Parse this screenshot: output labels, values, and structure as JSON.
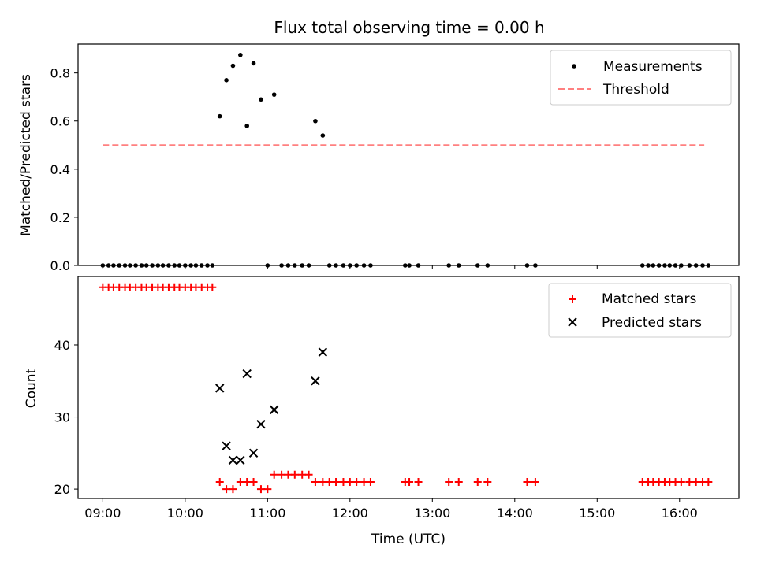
{
  "chart_data": {
    "title": "Flux total observing time = 0.00 h",
    "xlabel": "Time (UTC)",
    "x_tick_labels": [
      "09:00",
      "10:00",
      "11:00",
      "12:00",
      "13:00",
      "14:00",
      "15:00",
      "16:00"
    ],
    "x_tick_hours": [
      9,
      10,
      11,
      12,
      13,
      14,
      15,
      16
    ],
    "xlim": [
      8.7,
      16.72
    ],
    "panels": [
      {
        "type": "scatter",
        "ylabel": "Matched/Predicted stars",
        "ylim": [
          0,
          0.92
        ],
        "y_ticks": [
          0.0,
          0.2,
          0.4,
          0.6,
          0.8
        ],
        "y_tick_labels": [
          "0.0",
          "0.2",
          "0.4",
          "0.6",
          "0.8"
        ],
        "legend": "top-right",
        "series": [
          {
            "name": "Measurements",
            "marker": "dot",
            "color": "#000000",
            "points": [
              [
                9.0,
                0
              ],
              [
                9.07,
                0
              ],
              [
                9.13,
                0
              ],
              [
                9.2,
                0
              ],
              [
                9.27,
                0
              ],
              [
                9.33,
                0
              ],
              [
                9.4,
                0
              ],
              [
                9.47,
                0
              ],
              [
                9.53,
                0
              ],
              [
                9.6,
                0
              ],
              [
                9.67,
                0
              ],
              [
                9.73,
                0
              ],
              [
                9.8,
                0
              ],
              [
                9.87,
                0
              ],
              [
                9.93,
                0
              ],
              [
                10.0,
                0
              ],
              [
                10.07,
                0
              ],
              [
                10.13,
                0
              ],
              [
                10.2,
                0
              ],
              [
                10.27,
                0
              ],
              [
                10.33,
                0
              ],
              [
                10.42,
                0.62
              ],
              [
                10.5,
                0.77
              ],
              [
                10.58,
                0.83
              ],
              [
                10.67,
                0.875
              ],
              [
                10.75,
                0.58
              ],
              [
                10.83,
                0.84
              ],
              [
                10.92,
                0.69
              ],
              [
                11.0,
                0
              ],
              [
                11.08,
                0.71
              ],
              [
                11.17,
                0
              ],
              [
                11.25,
                0
              ],
              [
                11.33,
                0
              ],
              [
                11.42,
                0
              ],
              [
                11.5,
                0
              ],
              [
                11.58,
                0.6
              ],
              [
                11.67,
                0.54
              ],
              [
                11.75,
                0
              ],
              [
                11.83,
                0
              ],
              [
                11.92,
                0
              ],
              [
                12.0,
                0
              ],
              [
                12.08,
                0
              ],
              [
                12.17,
                0
              ],
              [
                12.25,
                0
              ],
              [
                12.67,
                0
              ],
              [
                12.72,
                0
              ],
              [
                12.83,
                0
              ],
              [
                13.2,
                0
              ],
              [
                13.32,
                0
              ],
              [
                13.55,
                0
              ],
              [
                13.67,
                0
              ],
              [
                14.15,
                0
              ],
              [
                14.25,
                0
              ],
              [
                15.55,
                0
              ],
              [
                15.62,
                0
              ],
              [
                15.68,
                0
              ],
              [
                15.75,
                0
              ],
              [
                15.82,
                0
              ],
              [
                15.88,
                0
              ],
              [
                15.95,
                0
              ],
              [
                16.02,
                0
              ],
              [
                16.12,
                0
              ],
              [
                16.2,
                0
              ],
              [
                16.28,
                0
              ],
              [
                16.35,
                0
              ]
            ]
          },
          {
            "name": "Threshold",
            "marker": "dashed-line",
            "color": "#ff8080",
            "points": [
              [
                9.0,
                0.5
              ],
              [
                16.3,
                0.5
              ]
            ]
          }
        ]
      },
      {
        "type": "scatter",
        "ylabel": "Count",
        "ylim": [
          18.7,
          49.5
        ],
        "y_ticks": [
          20,
          30,
          40
        ],
        "y_tick_labels": [
          "20",
          "30",
          "40"
        ],
        "legend": "top-right",
        "series": [
          {
            "name": "Matched stars",
            "marker": "plus",
            "color": "#ff0000",
            "points": [
              [
                9.0,
                48
              ],
              [
                9.07,
                48
              ],
              [
                9.13,
                48
              ],
              [
                9.2,
                48
              ],
              [
                9.27,
                48
              ],
              [
                9.33,
                48
              ],
              [
                9.4,
                48
              ],
              [
                9.47,
                48
              ],
              [
                9.53,
                48
              ],
              [
                9.6,
                48
              ],
              [
                9.67,
                48
              ],
              [
                9.73,
                48
              ],
              [
                9.8,
                48
              ],
              [
                9.87,
                48
              ],
              [
                9.93,
                48
              ],
              [
                10.0,
                48
              ],
              [
                10.07,
                48
              ],
              [
                10.13,
                48
              ],
              [
                10.2,
                48
              ],
              [
                10.27,
                48
              ],
              [
                10.33,
                48
              ],
              [
                10.42,
                21
              ],
              [
                10.5,
                20
              ],
              [
                10.58,
                20
              ],
              [
                10.67,
                21
              ],
              [
                10.75,
                21
              ],
              [
                10.83,
                21
              ],
              [
                10.92,
                20
              ],
              [
                11.0,
                20
              ],
              [
                11.08,
                22
              ],
              [
                11.17,
                22
              ],
              [
                11.25,
                22
              ],
              [
                11.33,
                22
              ],
              [
                11.42,
                22
              ],
              [
                11.5,
                22
              ],
              [
                11.58,
                21
              ],
              [
                11.67,
                21
              ],
              [
                11.75,
                21
              ],
              [
                11.83,
                21
              ],
              [
                11.92,
                21
              ],
              [
                12.0,
                21
              ],
              [
                12.08,
                21
              ],
              [
                12.17,
                21
              ],
              [
                12.25,
                21
              ],
              [
                12.67,
                21
              ],
              [
                12.72,
                21
              ],
              [
                12.83,
                21
              ],
              [
                13.2,
                21
              ],
              [
                13.32,
                21
              ],
              [
                13.55,
                21
              ],
              [
                13.67,
                21
              ],
              [
                14.15,
                21
              ],
              [
                14.25,
                21
              ],
              [
                15.55,
                21
              ],
              [
                15.62,
                21
              ],
              [
                15.68,
                21
              ],
              [
                15.75,
                21
              ],
              [
                15.82,
                21
              ],
              [
                15.88,
                21
              ],
              [
                15.95,
                21
              ],
              [
                16.02,
                21
              ],
              [
                16.12,
                21
              ],
              [
                16.2,
                21
              ],
              [
                16.28,
                21
              ],
              [
                16.35,
                21
              ]
            ]
          },
          {
            "name": "Predicted stars",
            "marker": "x",
            "color": "#000000",
            "points": [
              [
                10.42,
                34
              ],
              [
                10.5,
                26
              ],
              [
                10.58,
                24
              ],
              [
                10.67,
                24
              ],
              [
                10.75,
                36
              ],
              [
                10.83,
                25
              ],
              [
                10.92,
                29
              ],
              [
                11.08,
                31
              ],
              [
                11.58,
                35
              ],
              [
                11.67,
                39
              ]
            ]
          }
        ]
      }
    ]
  }
}
